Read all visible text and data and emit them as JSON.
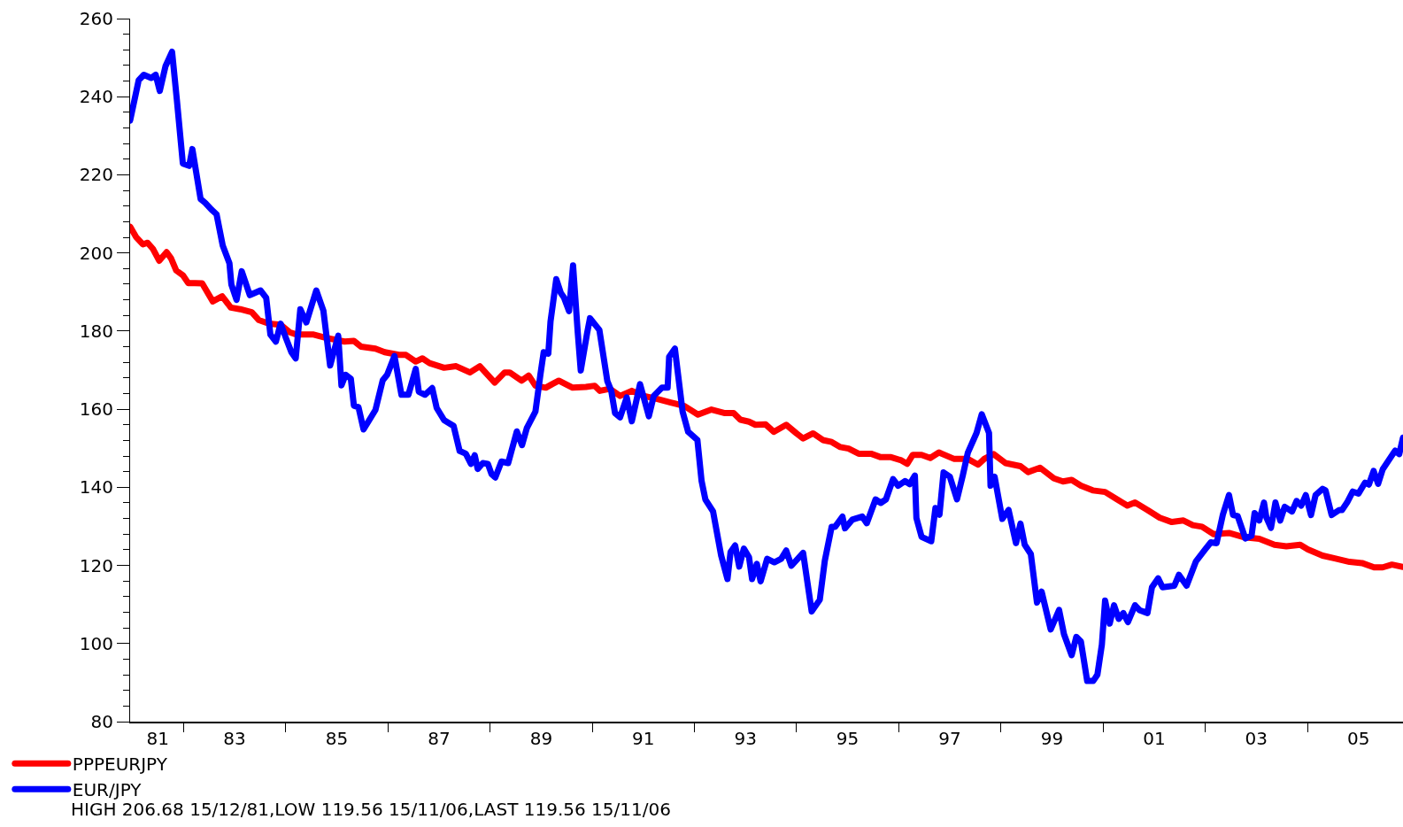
{
  "chart_data": {
    "type": "line",
    "xlim": [
      "1981-12-15",
      "2006-11-15"
    ],
    "xticks": [
      {
        "value": "1982-07-01",
        "label": "81"
      },
      {
        "value": "1983-01-01",
        "label": null
      },
      {
        "value": "1984-01-01",
        "label": "83"
      },
      {
        "value": "1985-01-01",
        "label": null
      },
      {
        "value": "1986-01-01",
        "label": "85"
      },
      {
        "value": "1987-01-01",
        "label": null
      },
      {
        "value": "1988-01-01",
        "label": "87"
      },
      {
        "value": "1989-01-01",
        "label": null
      },
      {
        "value": "1990-01-01",
        "label": "89"
      },
      {
        "value": "1991-01-01",
        "label": null
      },
      {
        "value": "1992-01-01",
        "label": "91"
      },
      {
        "value": "1993-01-01",
        "label": null
      },
      {
        "value": "1994-01-01",
        "label": "93"
      },
      {
        "value": "1995-01-01",
        "label": null
      },
      {
        "value": "1996-01-01",
        "label": "95"
      },
      {
        "value": "1997-01-01",
        "label": null
      },
      {
        "value": "1998-01-01",
        "label": "97"
      },
      {
        "value": "1999-01-01",
        "label": null
      },
      {
        "value": "2000-01-01",
        "label": "99"
      },
      {
        "value": "2001-01-01",
        "label": null
      },
      {
        "value": "2002-01-01",
        "label": "01"
      },
      {
        "value": "2003-01-01",
        "label": null
      },
      {
        "value": "2004-01-01",
        "label": "03"
      },
      {
        "value": "2005-01-01",
        "label": null
      },
      {
        "value": "2006-01-01",
        "label": "05"
      }
    ],
    "ylim": [
      80,
      260
    ],
    "yticks": [
      80,
      {
        "value": 84,
        "label": null
      },
      {
        "value": 88,
        "label": null
      },
      {
        "value": 92,
        "label": null
      },
      {
        "value": 96,
        "label": null
      },
      100,
      {
        "value": 104,
        "label": null
      },
      {
        "value": 108,
        "label": null
      },
      {
        "value": 112,
        "label": null
      },
      {
        "value": 116,
        "label": null
      },
      120,
      {
        "value": 124,
        "label": null
      },
      {
        "value": 128,
        "label": null
      },
      {
        "value": 132,
        "label": null
      },
      {
        "value": 136,
        "label": null
      },
      140,
      {
        "value": 144,
        "label": null
      },
      {
        "value": 148,
        "label": null
      },
      {
        "value": 152,
        "label": null
      },
      {
        "value": 156,
        "label": null
      },
      160,
      {
        "value": 164,
        "label": null
      },
      {
        "value": 168,
        "label": null
      },
      {
        "value": 172,
        "label": null
      },
      {
        "value": 176,
        "label": null
      },
      180,
      {
        "value": 184,
        "label": null
      },
      {
        "value": 188,
        "label": null
      },
      {
        "value": 192,
        "label": null
      },
      {
        "value": 196,
        "label": null
      },
      200,
      {
        "value": 204,
        "label": null
      },
      {
        "value": 208,
        "label": null
      },
      {
        "value": 212,
        "label": null
      },
      {
        "value": 216,
        "label": null
      },
      220,
      {
        "value": 224,
        "label": null
      },
      {
        "value": 228,
        "label": null
      },
      {
        "value": 232,
        "label": null
      },
      {
        "value": 236,
        "label": null
      },
      240,
      {
        "value": 244,
        "label": null
      },
      {
        "value": 248,
        "label": null
      },
      {
        "value": 252,
        "label": null
      },
      {
        "value": 256,
        "label": null
      },
      260
    ],
    "grid": false,
    "legend": "bottom left",
    "line_style": "solid",
    "annotations": [
      "HIGH 206.68 15/12/81,LOW 119.56 15/11/06,LAST 119.56 15/11/06"
    ],
    "series": [
      {
        "name": "PPPEURJPY",
        "color": "#ff0000",
        "x": [
          "1981-12-15",
          "1982-01-26",
          "1982-03-16",
          "1982-04-19",
          "1982-05-28",
          "1982-07-11",
          "1982-09-02",
          "1982-10-04",
          "1982-11-10",
          "1982-12-27",
          "1983-02-03",
          "1983-03-23",
          "1983-05-14",
          "1983-07-29",
          "1983-10-04",
          "1983-12-05",
          "1984-02-10",
          "1984-05-03",
          "1984-06-23",
          "1984-09-02",
          "1984-11-25",
          "1985-01-29",
          "1985-03-20",
          "1985-07-19",
          "1985-10-11",
          "1986-02-25",
          "1986-05-03",
          "1986-06-23",
          "1986-10-04",
          "1986-12-09",
          "1987-03-20",
          "1987-05-10",
          "1987-07-19",
          "1987-09-05",
          "1987-10-26",
          "1988-02-07",
          "1988-05-03",
          "1988-08-10",
          "1988-10-19",
          "1989-02-03",
          "1989-04-15",
          "1989-05-21",
          "1989-08-14",
          "1989-10-04",
          "1989-11-21",
          "1990-02-03",
          "1990-03-20",
          "1990-05-07",
          "1990-08-14",
          "1990-11-17",
          "1991-01-19",
          "1991-02-25",
          "1991-05-07",
          "1991-07-19",
          "1991-10-11",
          "1992-01-04",
          "1992-04-11",
          "1992-07-15",
          "1992-10-22",
          "1993-01-26",
          "1993-05-03",
          "1993-08-07",
          "1993-10-08",
          "1993-11-25",
          "1994-01-26",
          "1994-03-13",
          "1994-05-25",
          "1994-07-22",
          "1994-10-19",
          "1995-01-01",
          "1995-02-17",
          "1995-04-29",
          "1995-07-08",
          "1995-09-09",
          "1995-11-10",
          "1996-01-08",
          "1996-03-20",
          "1996-06-16",
          "1996-08-25",
          "1996-11-07",
          "1997-01-19",
          "1997-03-02",
          "1997-04-11",
          "1997-06-13",
          "1997-08-14",
          "1997-10-15",
          "1998-01-29",
          "1998-05-07",
          "1998-07-22",
          "1998-09-05",
          "1998-11-10",
          "1999-02-03",
          "1999-05-21",
          "1999-07-15",
          "1999-10-08",
          "2000-01-15",
          "2000-03-20",
          "2000-05-21",
          "2000-07-26",
          "2000-10-19",
          "2001-01-15",
          "2001-04-11",
          "2001-06-23",
          "2001-08-17",
          "2001-11-14",
          "2002-02-10",
          "2002-05-07",
          "2002-07-29",
          "2002-10-04",
          "2002-12-09",
          "2003-03-02",
          "2003-06-20",
          "2003-10-08",
          "2004-01-22",
          "2004-05-10",
          "2004-08-03",
          "2004-11-10",
          "2005-01-04",
          "2005-04-19",
          "2005-07-15",
          "2005-10-29",
          "2006-01-26",
          "2006-04-22",
          "2006-06-23",
          "2006-08-28",
          "2006-11-15"
        ],
        "values": [
          206.7,
          204.1,
          202.2,
          202.6,
          201.0,
          198.0,
          200.2,
          198.6,
          195.5,
          194.3,
          192.3,
          192.3,
          192.2,
          187.6,
          188.9,
          186.0,
          185.6,
          184.8,
          182.8,
          181.9,
          181.6,
          179.7,
          179.1,
          179.1,
          178.3,
          177.3,
          177.5,
          176.0,
          175.5,
          174.6,
          173.9,
          173.9,
          172.2,
          173.0,
          171.8,
          170.6,
          171.0,
          169.4,
          171.0,
          166.8,
          169.4,
          169.4,
          167.3,
          168.6,
          166.0,
          165.5,
          166.4,
          167.3,
          165.5,
          165.7,
          166.0,
          164.7,
          165.2,
          163.4,
          164.7,
          163.4,
          162.6,
          161.7,
          160.8,
          158.6,
          159.9,
          159.0,
          159.0,
          157.3,
          156.8,
          156.0,
          156.1,
          154.2,
          156.0,
          153.8,
          152.5,
          153.8,
          152.1,
          151.6,
          150.3,
          149.9,
          148.6,
          148.6,
          147.7,
          147.7,
          146.9,
          146.0,
          148.3,
          148.3,
          147.5,
          148.9,
          147.3,
          147.3,
          145.8,
          147.3,
          148.5,
          146.2,
          145.4,
          143.9,
          145.0,
          142.3,
          141.5,
          141.9,
          140.4,
          139.2,
          138.8,
          136.9,
          135.3,
          136.1,
          134.2,
          132.2,
          131.1,
          131.5,
          130.3,
          129.9,
          128.0,
          128.3,
          127.2,
          126.8,
          125.3,
          124.9,
          125.3,
          124.1,
          122.5,
          121.8,
          120.9,
          120.6,
          119.5,
          119.5,
          120.2,
          119.6
        ]
      },
      {
        "name": "EUR/JPY",
        "color": "#0000ff",
        "x": [
          "1981-12-15",
          "1982-02-14",
          "1982-03-23",
          "1982-05-14",
          "1982-06-16",
          "1982-07-15",
          "1982-08-25",
          "1982-10-11",
          "1982-11-14",
          "1982-12-27",
          "1983-02-10",
          "1983-03-05",
          "1983-05-03",
          "1983-06-05",
          "1983-07-19",
          "1983-08-25",
          "1983-10-08",
          "1983-11-25",
          "1983-12-09",
          "1984-01-15",
          "1984-02-21",
          "1984-04-19",
          "1984-07-04",
          "1984-08-14",
          "1984-09-13",
          "1984-10-22",
          "1984-11-25",
          "1985-01-01",
          "1985-02-10",
          "1985-03-13",
          "1985-04-15",
          "1985-05-28",
          "1985-08-07",
          "1985-09-27",
          "1985-11-14",
          "1986-01-11",
          "1986-02-03",
          "1986-03-05",
          "1986-04-11",
          "1986-05-03",
          "1986-06-05",
          "1986-07-11",
          "1986-10-04",
          "1986-11-25",
          "1986-12-27",
          "1987-02-17",
          "1987-04-08",
          "1987-05-28",
          "1987-07-19",
          "1987-08-10",
          "1987-09-23",
          "1987-11-14",
          "1987-12-16",
          "1988-02-07",
          "1988-04-15",
          "1988-05-28",
          "1988-07-11",
          "1988-08-17",
          "1988-09-13",
          "1988-10-04",
          "1988-11-10",
          "1988-12-16",
          "1989-01-11",
          "1989-02-07",
          "1989-03-23",
          "1989-05-10",
          "1989-07-11",
          "1989-08-17",
          "1989-09-20",
          "1989-11-21",
          "1989-12-27",
          "1990-01-19",
          "1990-02-21",
          "1990-03-09",
          "1990-04-19",
          "1990-05-21",
          "1990-06-13",
          "1990-07-19",
          "1990-08-17",
          "1990-09-20",
          "1990-10-11",
          "1990-11-25",
          "1990-12-16",
          "1991-02-21",
          "1991-04-19",
          "1991-05-17",
          "1991-06-13",
          "1991-07-19",
          "1991-09-05",
          "1991-10-11",
          "1991-12-09",
          "1992-02-10",
          "1992-03-16",
          "1992-05-14",
          "1992-06-23",
          "1992-07-04",
          "1992-08-14",
          "1992-10-08",
          "1992-11-17",
          "1993-01-22",
          "1993-02-21",
          "1993-03-20",
          "1993-05-14",
          "1993-07-11",
          "1993-08-25",
          "1993-09-16",
          "1993-10-19",
          "1993-11-17",
          "1993-12-20",
          "1994-01-26",
          "1994-02-17",
          "1994-03-23",
          "1994-04-19",
          "1994-06-05",
          "1994-07-26",
          "1994-09-13",
          "1994-10-19",
          "1994-11-25",
          "1995-02-17",
          "1995-04-19",
          "1995-06-16",
          "1995-07-22",
          "1995-09-09",
          "1995-10-04",
          "1995-11-25",
          "1995-12-13",
          "1996-02-03",
          "1996-04-15",
          "1996-05-17",
          "1996-07-19",
          "1996-08-25",
          "1996-10-01",
          "1996-11-21",
          "1996-12-27",
          "1997-02-14",
          "1997-03-20",
          "1997-04-26",
          "1997-05-07",
          "1997-06-13",
          "1997-08-21",
          "1997-09-20",
          "1997-10-19",
          "1997-11-17",
          "1998-01-01",
          "1998-02-21",
          "1998-04-04",
          "1998-05-10",
          "1998-07-11",
          "1998-08-17",
          "1998-10-08",
          "1998-10-19",
          "1998-11-17",
          "1999-01-11",
          "1999-02-25",
          "1999-04-19",
          "1999-05-21",
          "1999-06-20",
          "1999-08-03",
          "1999-09-16",
          "1999-10-19",
          "1999-12-23",
          "2000-02-21",
          "2000-03-27",
          "2000-05-21",
          "2000-06-23",
          "2000-07-26",
          "2000-09-09",
          "2000-10-22",
          "2000-11-21",
          "2000-12-23",
          "2001-01-15",
          "2001-02-17",
          "2001-03-20",
          "2001-04-22",
          "2001-05-25",
          "2001-06-27",
          "2001-08-17",
          "2001-09-20",
          "2001-11-14",
          "2001-12-16",
          "2002-01-29",
          "2002-03-02",
          "2002-05-25",
          "2002-06-27",
          "2002-08-21",
          "2002-10-26",
          "2003-01-01",
          "2003-02-10",
          "2003-03-23",
          "2003-05-07",
          "2003-06-20",
          "2003-07-19",
          "2003-08-21",
          "2003-10-15",
          "2003-11-28",
          "2003-12-20",
          "2004-01-22",
          "2004-02-25",
          "2004-03-13",
          "2004-04-15",
          "2004-05-17",
          "2004-06-20",
          "2004-07-22",
          "2004-09-13",
          "2004-10-15",
          "2004-11-17",
          "2004-12-20",
          "2005-01-26",
          "2005-02-28",
          "2005-04-19",
          "2005-05-10",
          "2005-06-23",
          "2005-08-17",
          "2005-09-05",
          "2005-10-11",
          "2005-11-21",
          "2006-01-01",
          "2006-02-17",
          "2006-03-16",
          "2006-04-19",
          "2006-05-21",
          "2006-06-23",
          "2006-09-20",
          "2006-10-19",
          "2006-11-15"
        ],
        "values": [
          233.9,
          244.2,
          245.6,
          244.8,
          245.6,
          241.5,
          247.8,
          251.5,
          239.3,
          222.9,
          222.3,
          226.6,
          213.8,
          212.8,
          211.1,
          209.9,
          201.9,
          197.4,
          191.9,
          188.0,
          195.3,
          189.2,
          190.4,
          188.5,
          179.1,
          177.3,
          181.9,
          178.3,
          174.6,
          173.0,
          185.6,
          182.2,
          190.4,
          185.2,
          171.2,
          178.8,
          166.1,
          168.8,
          167.8,
          160.9,
          160.5,
          154.8,
          159.8,
          167.4,
          168.8,
          173.6,
          163.7,
          163.7,
          170.3,
          164.5,
          163.7,
          165.4,
          160.3,
          157.2,
          155.7,
          149.3,
          148.6,
          146.0,
          148.2,
          144.7,
          146.2,
          146.0,
          143.4,
          142.5,
          146.6,
          146.2,
          154.3,
          150.8,
          155.1,
          159.4,
          169.0,
          174.6,
          174.2,
          182.5,
          193.3,
          189.8,
          188.6,
          185.1,
          196.8,
          179.4,
          169.9,
          179.4,
          183.3,
          180.3,
          167.2,
          164.7,
          159.0,
          157.9,
          163.0,
          156.9,
          166.4,
          158.2,
          163.4,
          165.5,
          165.5,
          173.4,
          175.5,
          159.4,
          154.2,
          152.1,
          141.6,
          136.9,
          133.8,
          122.5,
          116.5,
          123.4,
          125.1,
          119.7,
          124.3,
          122.1,
          116.5,
          120.4,
          115.9,
          121.7,
          120.8,
          121.7,
          123.8,
          119.9,
          123.2,
          108.2,
          111.2,
          121.2,
          129.9,
          129.9,
          132.5,
          129.5,
          131.7,
          132.5,
          130.8,
          136.9,
          136.0,
          136.9,
          142.1,
          140.4,
          141.6,
          140.8,
          143.0,
          132.1,
          127.3,
          126.2,
          134.7,
          133.0,
          143.8,
          142.7,
          136.9,
          143.1,
          148.9,
          153.9,
          158.7,
          153.9,
          140.4,
          142.7,
          131.9,
          134.2,
          125.7,
          130.7,
          125.3,
          122.9,
          110.5,
          113.3,
          103.6,
          108.6,
          102.4,
          97.0,
          101.7,
          100.5,
          90.4,
          90.4,
          92.0,
          99.7,
          111.0,
          105.1,
          109.8,
          106.3,
          107.8,
          105.5,
          109.8,
          108.5,
          107.8,
          114.4,
          116.7,
          114.4,
          114.8,
          117.6,
          114.8,
          121.0,
          124.1,
          125.9,
          125.7,
          133.0,
          138.0,
          132.9,
          132.6,
          126.9,
          127.6,
          133.4,
          131.5,
          136.1,
          132.3,
          129.6,
          136.1,
          131.5,
          135.0,
          133.8,
          136.5,
          135.3,
          138.0,
          132.9,
          138.0,
          139.6,
          139.2,
          132.9,
          134.2,
          134.2,
          136.1,
          138.9,
          138.4,
          141.2,
          140.7,
          144.2,
          140.9,
          144.6,
          149.4,
          148.5,
          152.7
        ]
      }
    ]
  }
}
